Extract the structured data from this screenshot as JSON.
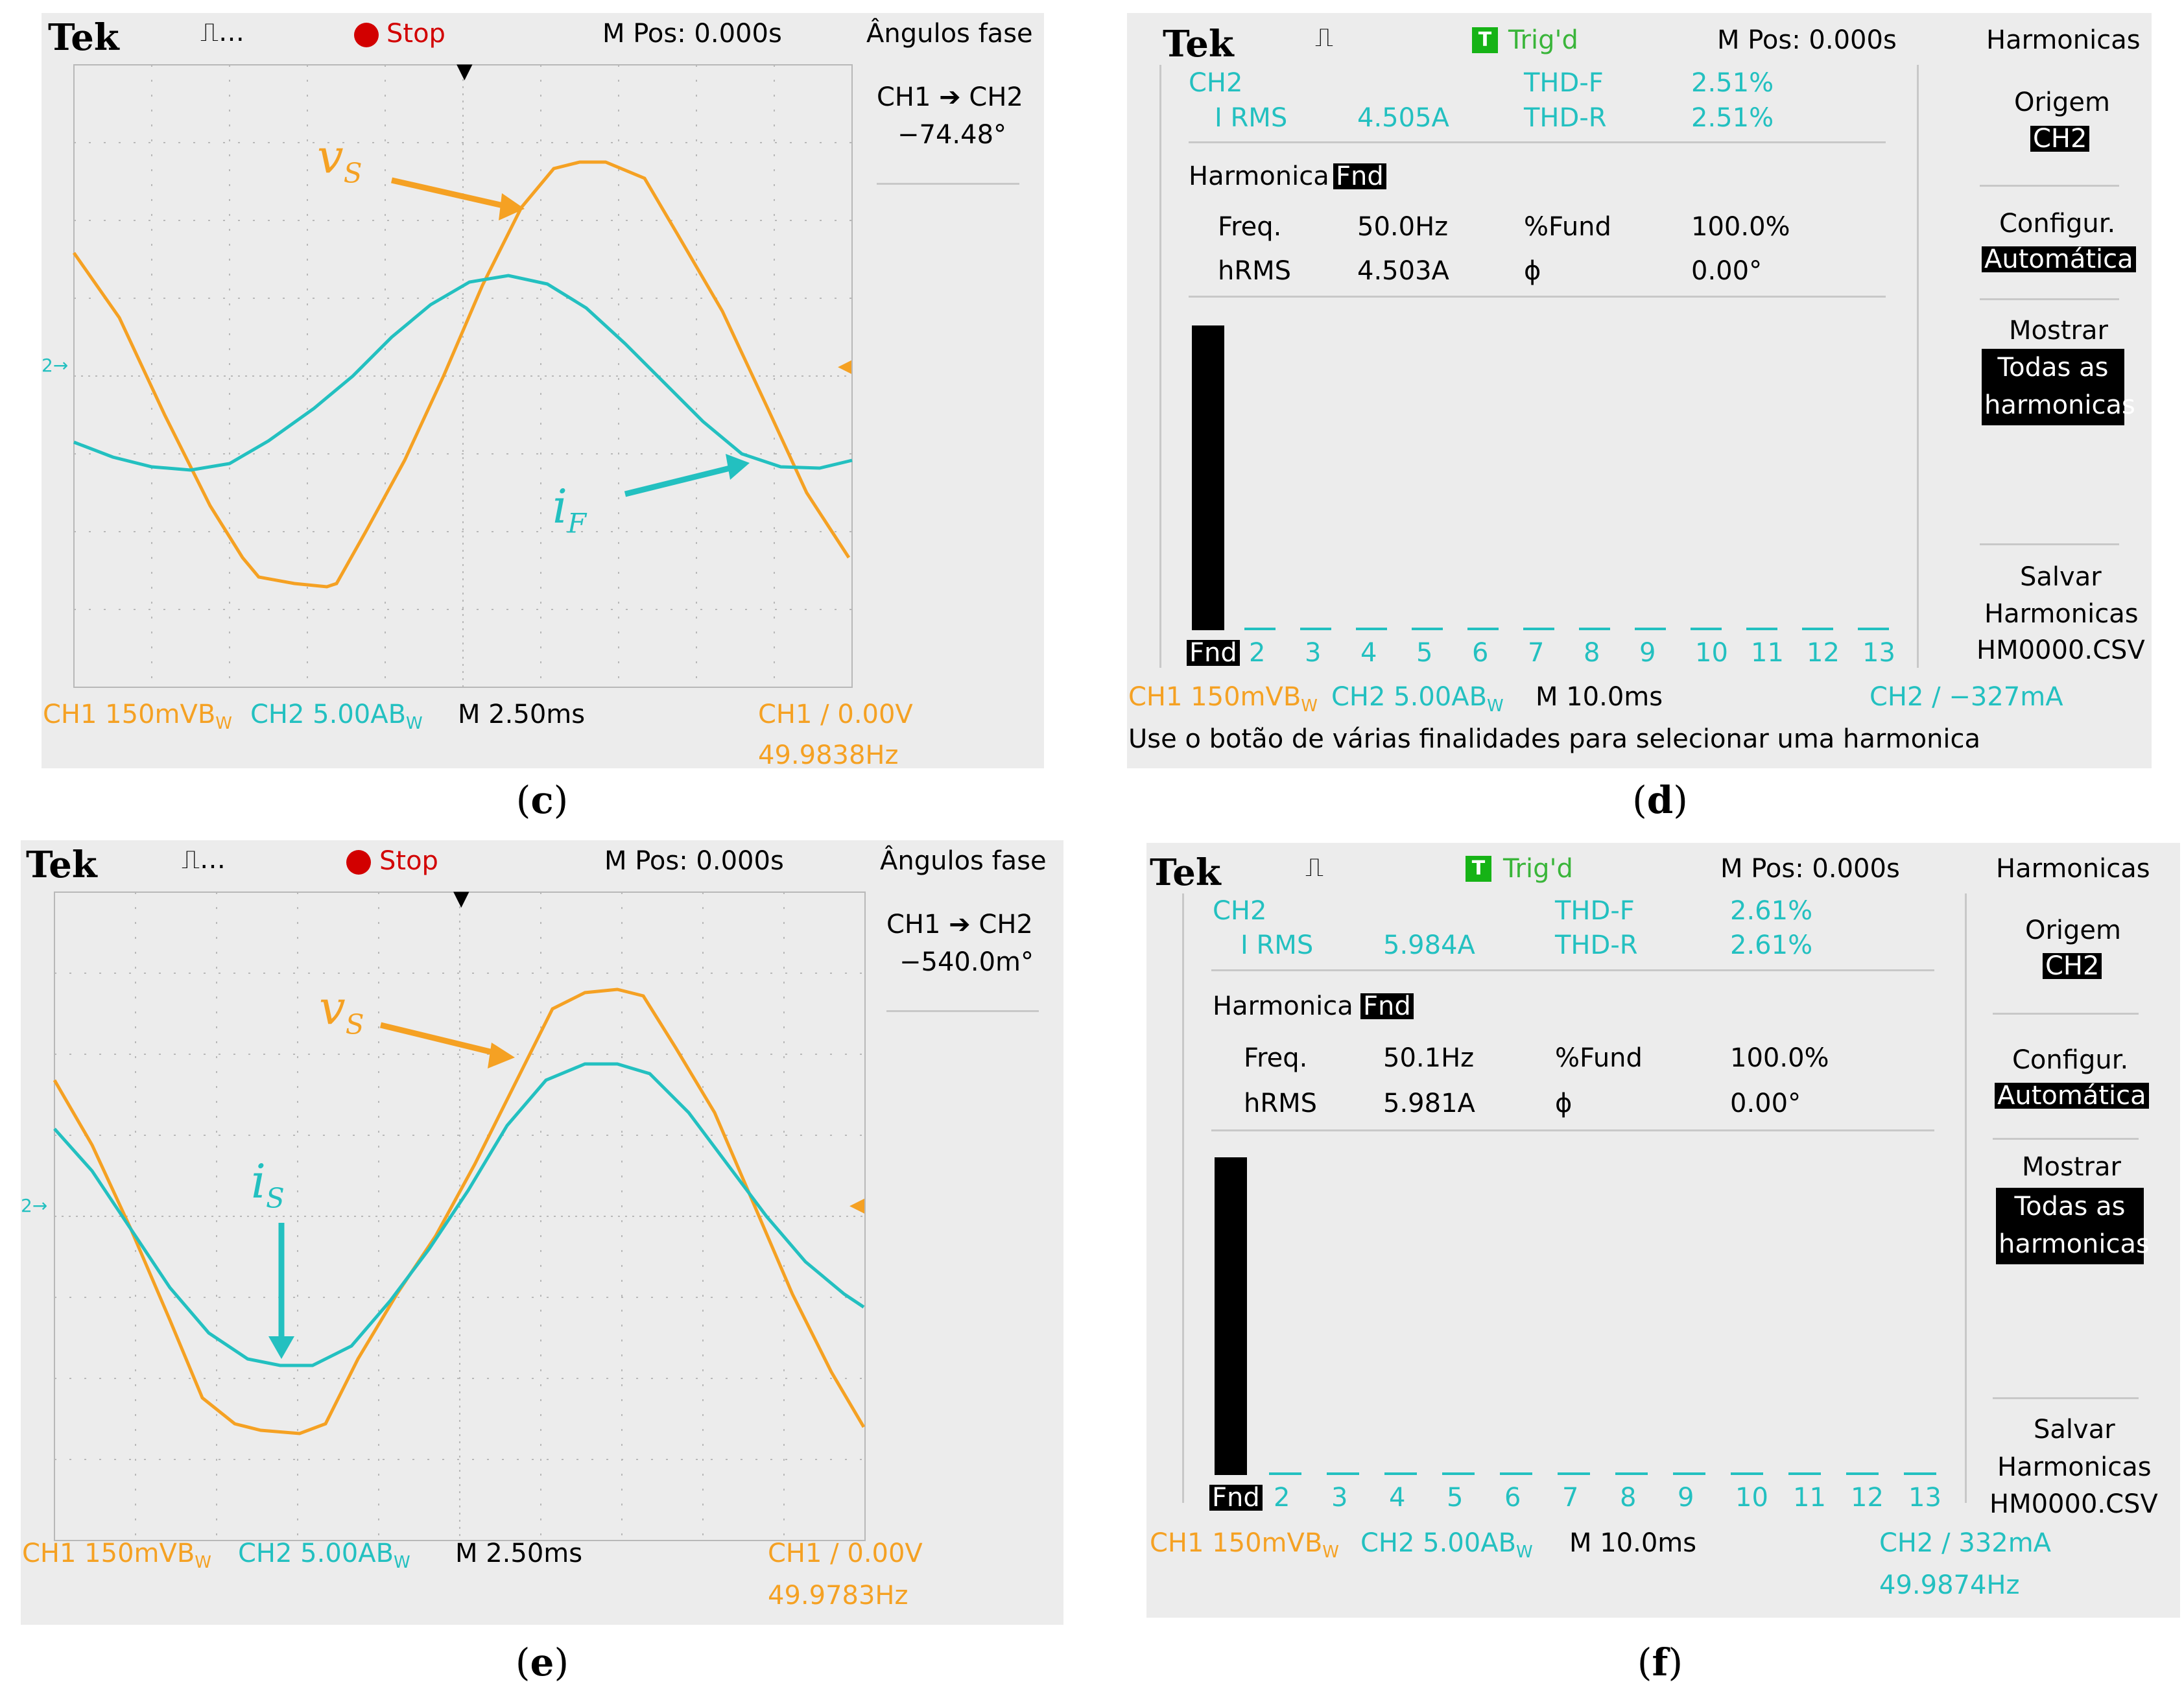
{
  "panel_c": {
    "caption": "c",
    "brand": "Tek",
    "status": "Stop",
    "mpos": "M Pos: 0.000s",
    "menu_title": "Ângulos fase",
    "measure_label": "CH1 ➔ CH2",
    "measure_value": "−74.48°",
    "ch2_marker": "2→",
    "label_v": "v",
    "label_v_sub": "S",
    "label_i": "i",
    "label_i_sub": "F",
    "ch1_scale": "CH1  150mVB",
    "ch1_bw": "W",
    "ch2_scale": "CH2  5.00AB",
    "ch2_bw": "W",
    "timebase": "M 2.50ms",
    "trigger": "CH1 ∕ 0.00V",
    "frequency": "49.9838Hz"
  },
  "panel_d": {
    "caption": "d",
    "brand": "Tek",
    "trig_icon": "T",
    "status": "Trig'd",
    "mpos": "M Pos: 0.000s",
    "menu_title": "Harmonicas",
    "channel": "CH2",
    "irms_label": "I RMS",
    "irms_value": "4.505A",
    "thdf_label": "THD-F",
    "thdf_value": "2.51%",
    "thdr_label": "THD-R",
    "thdr_value": "2.51%",
    "harmonica_label": "Harmonica",
    "harmonica_sel": "Fnd",
    "freq_label": "Freq.",
    "freq_value": "50.0Hz",
    "fund_label": "%Fund",
    "fund_value": "100.0%",
    "hrms_label": "hRMS",
    "hrms_value": "4.503A",
    "phi_label": "ϕ",
    "phi_value": "0.00°",
    "menu_origem": "Origem",
    "menu_origem_val": "CH2",
    "menu_config": "Configur.",
    "menu_config_val": "Automática",
    "menu_mostrar": "Mostrar",
    "menu_mostrar_val1": "Todas as",
    "menu_mostrar_val2": "harmonicas",
    "menu_salvar": "Salvar",
    "menu_salvar2": "Harmonicas",
    "menu_file": "HM0000.CSV",
    "harm_labels": [
      "Fnd",
      "2",
      "3",
      "4",
      "5",
      "6",
      "7",
      "8",
      "9",
      "10",
      "11",
      "12",
      "13"
    ],
    "harm_values": [
      100,
      0.8,
      0.8,
      0.8,
      0.8,
      0.8,
      0.8,
      0.8,
      0.8,
      0.8,
      0.8,
      0.8,
      0.8
    ],
    "ch1_scale": "CH1  150mVB",
    "ch1_bw": "W",
    "ch2_scale": "CH2  5.00AB",
    "ch2_bw": "W",
    "timebase": "M 10.0ms",
    "trigger": "CH2 ∕ −327mA",
    "hint": "Use o botão de várias finalidades para selecionar uma harmonica"
  },
  "panel_e": {
    "caption": "e",
    "brand": "Tek",
    "status": "Stop",
    "mpos": "M Pos: 0.000s",
    "menu_title": "Ângulos fase",
    "measure_label": "CH1 ➔ CH2",
    "measure_value": "−540.0m°",
    "ch2_marker": "2→",
    "label_v": "v",
    "label_v_sub": "S",
    "label_i": "i",
    "label_i_sub": "S",
    "ch1_scale": "CH1  150mVB",
    "ch1_bw": "W",
    "ch2_scale": "CH2  5.00AB",
    "ch2_bw": "W",
    "timebase": "M 2.50ms",
    "trigger": "CH1 ∕ 0.00V",
    "frequency": "49.9783Hz"
  },
  "panel_f": {
    "caption": "f",
    "brand": "Tek",
    "trig_icon": "T",
    "status": "Trig'd",
    "mpos": "M Pos: 0.000s",
    "menu_title": "Harmonicas",
    "channel": "CH2",
    "irms_label": "I RMS",
    "irms_value": "5.984A",
    "thdf_label": "THD-F",
    "thdf_value": "2.61%",
    "thdr_label": "THD-R",
    "thdr_value": "2.61%",
    "harmonica_label": "Harmonica",
    "harmonica_sel": "Fnd",
    "freq_label": "Freq.",
    "freq_value": "50.1Hz",
    "fund_label": "%Fund",
    "fund_value": "100.0%",
    "hrms_label": "hRMS",
    "hrms_value": "5.981A",
    "phi_label": "ϕ",
    "phi_value": "0.00°",
    "menu_origem": "Origem",
    "menu_origem_val": "CH2",
    "menu_config": "Configur.",
    "menu_config_val": "Automática",
    "menu_mostrar": "Mostrar",
    "menu_mostrar_val1": "Todas as",
    "menu_mostrar_val2": "harmonicas",
    "menu_salvar": "Salvar",
    "menu_salvar2": "Harmonicas",
    "menu_file": "HM0000.CSV",
    "harm_labels": [
      "Fnd",
      "2",
      "3",
      "4",
      "5",
      "6",
      "7",
      "8",
      "9",
      "10",
      "11",
      "12",
      "13"
    ],
    "harm_values": [
      100,
      0.8,
      0.8,
      0.8,
      0.8,
      0.8,
      0.8,
      0.8,
      0.8,
      0.8,
      0.8,
      0.8,
      0.8
    ],
    "ch1_scale": "CH1  150mVB",
    "ch1_bw": "W",
    "ch2_scale": "CH2  5.00AB",
    "ch2_bw": "W",
    "timebase": "M 10.0ms",
    "trigger": "CH2 ∕ 332mA",
    "frequency": "49.9874Hz"
  },
  "colors": {
    "ch1": "#f5a123",
    "ch2": "#23c0c0",
    "background": "#ececec",
    "grid": "#b8b8b8"
  }
}
